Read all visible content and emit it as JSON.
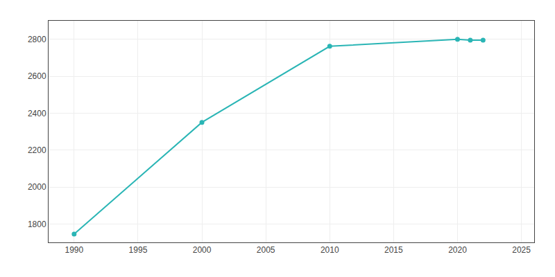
{
  "chart_data": {
    "type": "line",
    "x": [
      1990,
      2000,
      2010,
      2020,
      2021,
      2022
    ],
    "values": [
      1745,
      2350,
      2762,
      2800,
      2795,
      2795
    ],
    "color": "#2ab5b5",
    "marker": "circle",
    "xlim": [
      1988,
      2026
    ],
    "ylim": [
      1700,
      2900
    ],
    "xticks": [
      1990,
      1995,
      2000,
      2005,
      2010,
      2015,
      2020,
      2025
    ],
    "yticks": [
      1800,
      2000,
      2200,
      2400,
      2600,
      2800
    ],
    "grid": true
  }
}
